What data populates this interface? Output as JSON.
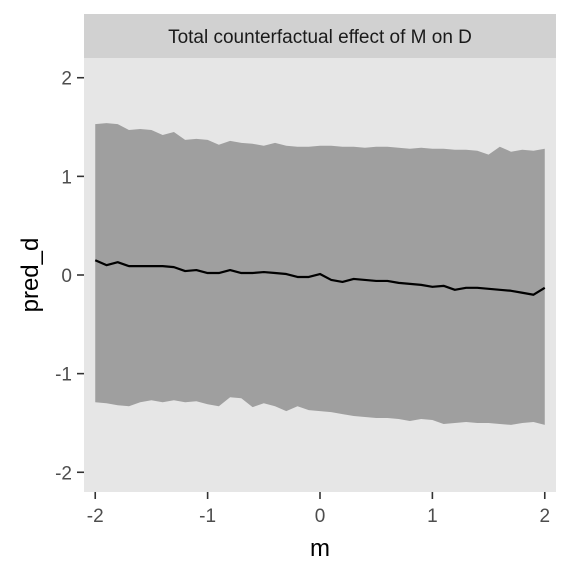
{
  "chart_data": {
    "type": "line",
    "title": "Total counterfactual effect of M on D",
    "xlabel": "m",
    "ylabel": "pred_d",
    "xlim": [
      -2.1,
      2.1
    ],
    "ylim": [
      -2.2,
      2.2
    ],
    "x_ticks": [
      -2,
      -1,
      0,
      1,
      2
    ],
    "x_tick_labels": [
      "-2",
      "-1",
      "0",
      "1",
      "2"
    ],
    "y_ticks": [
      -2,
      -1,
      0,
      1,
      2
    ],
    "y_tick_labels": [
      "-2",
      "-1",
      "0",
      "1",
      "2"
    ],
    "grid": false,
    "x": [
      -2.0,
      -1.9,
      -1.8,
      -1.7,
      -1.6,
      -1.5,
      -1.4,
      -1.3,
      -1.2,
      -1.1,
      -1.0,
      -0.9,
      -0.8,
      -0.7,
      -0.6,
      -0.5,
      -0.4,
      -0.3,
      -0.2,
      -0.1,
      0.0,
      0.1,
      0.2,
      0.3,
      0.4,
      0.5,
      0.6,
      0.7,
      0.8,
      0.9,
      1.0,
      1.1,
      1.2,
      1.3,
      1.4,
      1.5,
      1.6,
      1.7,
      1.8,
      1.9,
      2.0
    ],
    "y": [
      0.15,
      0.1,
      0.13,
      0.09,
      0.09,
      0.09,
      0.09,
      0.08,
      0.04,
      0.05,
      0.02,
      0.02,
      0.05,
      0.02,
      0.02,
      0.03,
      0.02,
      0.01,
      -0.02,
      -0.02,
      0.01,
      -0.05,
      -0.07,
      -0.04,
      -0.05,
      -0.06,
      -0.06,
      -0.08,
      -0.09,
      -0.1,
      -0.12,
      -0.11,
      -0.15,
      -0.13,
      -0.13,
      -0.14,
      -0.15,
      -0.16,
      -0.18,
      -0.2,
      -0.13
    ],
    "upper": [
      1.53,
      1.54,
      1.53,
      1.47,
      1.48,
      1.47,
      1.42,
      1.45,
      1.37,
      1.38,
      1.37,
      1.32,
      1.36,
      1.34,
      1.33,
      1.31,
      1.34,
      1.31,
      1.3,
      1.3,
      1.31,
      1.31,
      1.3,
      1.3,
      1.29,
      1.3,
      1.3,
      1.29,
      1.28,
      1.29,
      1.28,
      1.28,
      1.27,
      1.27,
      1.26,
      1.22,
      1.3,
      1.25,
      1.27,
      1.26,
      1.28
    ],
    "lower": [
      -1.29,
      -1.3,
      -1.32,
      -1.33,
      -1.29,
      -1.27,
      -1.29,
      -1.27,
      -1.29,
      -1.28,
      -1.31,
      -1.33,
      -1.24,
      -1.25,
      -1.34,
      -1.3,
      -1.33,
      -1.38,
      -1.33,
      -1.37,
      -1.38,
      -1.39,
      -1.41,
      -1.43,
      -1.44,
      -1.45,
      -1.45,
      -1.46,
      -1.48,
      -1.46,
      -1.47,
      -1.51,
      -1.5,
      -1.49,
      -1.5,
      -1.5,
      -1.51,
      -1.52,
      -1.5,
      -1.49,
      -1.52
    ],
    "colors": {
      "panel": "#e6e6e6",
      "strip": "#d1d1d1",
      "ribbon": "#9f9f9f",
      "line": "#000000",
      "tick": "#333333"
    }
  }
}
